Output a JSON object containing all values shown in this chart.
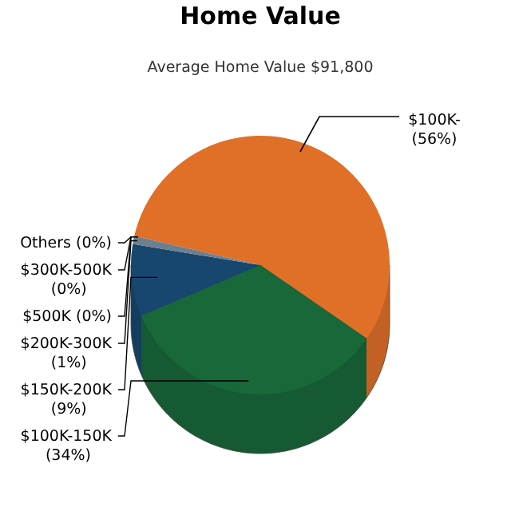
{
  "chart_data": {
    "type": "pie",
    "title": "Home Value",
    "subtitle": "Average Home Value  $91,800",
    "categories": [
      "$100K-",
      "$100K-150K",
      "$150K-200K",
      "$200K-300K",
      "$500K",
      "$300K-500K",
      "Others"
    ],
    "values": [
      56,
      34,
      9,
      1,
      0,
      0,
      0
    ],
    "value_labels": [
      "(56%)",
      "(34%)",
      "(9%)",
      "(1%)",
      "(0%)",
      "(0%)",
      "(0%)"
    ],
    "colors": [
      "#e07028",
      "#18683a",
      "#17476f",
      "#6d7f8c",
      "#8a8a8a",
      "#9a9a9a",
      "#a0a0a0"
    ]
  }
}
